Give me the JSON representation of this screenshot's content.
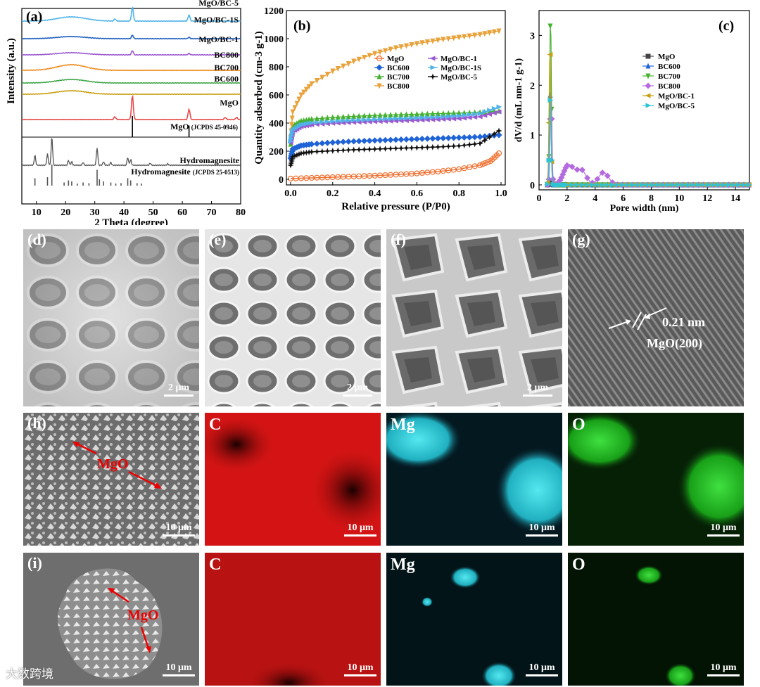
{
  "chart_data": [
    {
      "id": "a",
      "type": "line",
      "panel_label": "(a)",
      "xlabel": "2 Theta (degree)",
      "ylabel": "Intensity (a.u.)",
      "xlim": [
        5,
        80
      ],
      "xticks": [
        10,
        20,
        30,
        40,
        50,
        60,
        70,
        80
      ],
      "series": [
        {
          "name": "MgO/BC-5",
          "color": "#4fb3e8",
          "peaks": [
            {
              "x": 42.9,
              "h": 20
            },
            {
              "x": 62.3,
              "h": 9
            },
            {
              "x": 36.9,
              "h": 3
            }
          ],
          "hump": [
            22,
            6
          ]
        },
        {
          "name": "MgO/BC-1S",
          "color": "#1f5fbf",
          "peaks": [
            {
              "x": 42.9,
              "h": 5
            },
            {
              "x": 62.3,
              "h": 2
            }
          ],
          "hump": [
            22,
            3
          ]
        },
        {
          "name": "MgO/BC-1",
          "color": "#9b59d0",
          "peaks": [
            {
              "x": 42.9,
              "h": 6
            },
            {
              "x": 62.3,
              "h": 2
            }
          ],
          "hump": [
            22,
            3
          ]
        },
        {
          "name": "BC800",
          "color": "#f08a1d",
          "peaks": [],
          "hump": [
            22,
            8
          ]
        },
        {
          "name": "BC700",
          "color": "#3fa64a",
          "peaks": [],
          "hump": [
            22,
            5
          ]
        },
        {
          "name": "BC600",
          "color": "#c8a014",
          "peaks": [],
          "hump": [
            22,
            5
          ]
        },
        {
          "name": "MgO",
          "color": "#e84a4a",
          "peaks": [
            {
              "x": 42.9,
              "h": 34
            },
            {
              "x": 62.3,
              "h": 15
            },
            {
              "x": 36.9,
              "h": 4
            },
            {
              "x": 74.7,
              "h": 3
            },
            {
              "x": 78.6,
              "h": 3
            }
          ],
          "hump": [
            0,
            0
          ]
        }
      ],
      "reference_MgO": {
        "label": "MgO",
        "label_suffix": "(JCPDS 45-0946)",
        "lines": [
          {
            "x": 42.9,
            "h": 1
          },
          {
            "x": 62.3,
            "h": 0.55
          }
        ]
      },
      "hydromagnesite": {
        "label": "Hydromagnesite",
        "ref_label": "Hydromagnesite",
        "ref_suffix": "(JCPDS 25-0513)",
        "peaks": [
          {
            "x": 9.5,
            "h": 14
          },
          {
            "x": 13.8,
            "h": 16
          },
          {
            "x": 15.3,
            "h": 40
          },
          {
            "x": 21.0,
            "h": 7
          },
          {
            "x": 22.1,
            "h": 5
          },
          {
            "x": 26.0,
            "h": 4
          },
          {
            "x": 30.8,
            "h": 25
          },
          {
            "x": 33.0,
            "h": 5
          },
          {
            "x": 35.5,
            "h": 4
          },
          {
            "x": 41.3,
            "h": 11
          },
          {
            "x": 42.3,
            "h": 8
          },
          {
            "x": 49.0,
            "h": 3
          },
          {
            "x": 55.0,
            "h": 2
          }
        ],
        "ref_lines": [
          {
            "x": 9.5,
            "h": 0.35
          },
          {
            "x": 13.8,
            "h": 0.4
          },
          {
            "x": 15.3,
            "h": 1.0
          },
          {
            "x": 19.5,
            "h": 0.15
          },
          {
            "x": 21.0,
            "h": 0.25
          },
          {
            "x": 22.1,
            "h": 0.2
          },
          {
            "x": 24.0,
            "h": 0.1
          },
          {
            "x": 26.0,
            "h": 0.15
          },
          {
            "x": 28.0,
            "h": 0.12
          },
          {
            "x": 30.8,
            "h": 0.75
          },
          {
            "x": 31.6,
            "h": 0.3
          },
          {
            "x": 33.0,
            "h": 0.2
          },
          {
            "x": 35.5,
            "h": 0.15
          },
          {
            "x": 37.2,
            "h": 0.1
          },
          {
            "x": 39.0,
            "h": 0.12
          },
          {
            "x": 41.3,
            "h": 0.35
          },
          {
            "x": 42.3,
            "h": 0.25
          },
          {
            "x": 44.5,
            "h": 0.12
          },
          {
            "x": 46.0,
            "h": 0.1
          }
        ]
      }
    },
    {
      "id": "b",
      "type": "line",
      "panel_label": "(b)",
      "xlabel": "Relative pressure (P/P0)",
      "ylabel": "Quantity adsorbed (cm-3 g-1)",
      "xlim": [
        -0.02,
        1.02
      ],
      "ylim": [
        -40,
        1200
      ],
      "xticks": [
        0.0,
        0.2,
        0.4,
        0.6,
        0.8,
        1.0
      ],
      "yticks": [
        0,
        200,
        400,
        600,
        800,
        1000,
        1200
      ],
      "legend_position": "center-right",
      "series": [
        {
          "name": "MgO",
          "color": "#f07030",
          "marker": "circle",
          "points": [
            [
              0.0,
              5
            ],
            [
              0.1,
              10
            ],
            [
              0.2,
              15
            ],
            [
              0.3,
              20
            ],
            [
              0.4,
              26
            ],
            [
              0.5,
              33
            ],
            [
              0.6,
              42
            ],
            [
              0.7,
              55
            ],
            [
              0.8,
              72
            ],
            [
              0.9,
              100
            ],
            [
              0.95,
              130
            ],
            [
              0.99,
              185
            ]
          ]
        },
        {
          "name": "BC600",
          "color": "#1f63d6",
          "marker": "diamond",
          "points": [
            [
              0.0,
              150
            ],
            [
              0.01,
              215
            ],
            [
              0.05,
              240
            ],
            [
              0.1,
              250
            ],
            [
              0.2,
              262
            ],
            [
              0.3,
              270
            ],
            [
              0.4,
              276
            ],
            [
              0.5,
              281
            ],
            [
              0.6,
              286
            ],
            [
              0.7,
              291
            ],
            [
              0.8,
              296
            ],
            [
              0.9,
              302
            ],
            [
              0.99,
              315
            ]
          ]
        },
        {
          "name": "BC700",
          "color": "#45b12e",
          "marker": "triangle",
          "points": [
            [
              0.0,
              250
            ],
            [
              0.01,
              380
            ],
            [
              0.05,
              415
            ],
            [
              0.1,
              428
            ],
            [
              0.2,
              440
            ],
            [
              0.3,
              448
            ],
            [
              0.4,
              454
            ],
            [
              0.5,
              459
            ],
            [
              0.6,
              463
            ],
            [
              0.7,
              467
            ],
            [
              0.8,
              471
            ],
            [
              0.9,
              476
            ],
            [
              0.99,
              485
            ]
          ]
        },
        {
          "name": "BC800",
          "color": "#e8a23a",
          "marker": "triangle-down",
          "points": [
            [
              0.0,
              300
            ],
            [
              0.01,
              480
            ],
            [
              0.05,
              600
            ],
            [
              0.1,
              680
            ],
            [
              0.2,
              770
            ],
            [
              0.3,
              840
            ],
            [
              0.4,
              895
            ],
            [
              0.5,
              935
            ],
            [
              0.6,
              965
            ],
            [
              0.7,
              990
            ],
            [
              0.8,
              1010
            ],
            [
              0.9,
              1030
            ],
            [
              0.99,
              1055
            ]
          ]
        },
        {
          "name": "MgO/BC-1",
          "color": "#9b59d0",
          "marker": "triangle-left",
          "points": [
            [
              0.0,
              260
            ],
            [
              0.01,
              340
            ],
            [
              0.05,
              375
            ],
            [
              0.1,
              388
            ],
            [
              0.2,
              398
            ],
            [
              0.3,
              405
            ],
            [
              0.4,
              410
            ],
            [
              0.5,
              415
            ],
            [
              0.6,
              420
            ],
            [
              0.7,
              425
            ],
            [
              0.8,
              432
            ],
            [
              0.9,
              445
            ],
            [
              0.99,
              480
            ]
          ]
        },
        {
          "name": "MgO/BC-1S",
          "color": "#4fb3e8",
          "marker": "triangle-right",
          "points": [
            [
              0.0,
              270
            ],
            [
              0.01,
              350
            ],
            [
              0.05,
              388
            ],
            [
              0.1,
              402
            ],
            [
              0.2,
              412
            ],
            [
              0.3,
              420
            ],
            [
              0.4,
              426
            ],
            [
              0.5,
              431
            ],
            [
              0.6,
              437
            ],
            [
              0.7,
              443
            ],
            [
              0.8,
              452
            ],
            [
              0.9,
              468
            ],
            [
              0.99,
              515
            ]
          ]
        },
        {
          "name": "MgO/BC-5",
          "color": "#111111",
          "marker": "star",
          "points": [
            [
              0.0,
              100
            ],
            [
              0.01,
              160
            ],
            [
              0.05,
              185
            ],
            [
              0.1,
              195
            ],
            [
              0.2,
              203
            ],
            [
              0.3,
              210
            ],
            [
              0.4,
              215
            ],
            [
              0.5,
              220
            ],
            [
              0.6,
              225
            ],
            [
              0.7,
              230
            ],
            [
              0.8,
              238
            ],
            [
              0.9,
              255
            ],
            [
              0.99,
              345
            ]
          ]
        }
      ]
    },
    {
      "id": "c",
      "type": "line",
      "panel_label": "(c)",
      "xlabel": "Pore width (nm)",
      "ylabel": "dV/d (mL nm-1 g-1)",
      "xlim": [
        0,
        15
      ],
      "ylim": [
        -0.1,
        3.5
      ],
      "xticks": [
        0,
        2,
        4,
        6,
        8,
        10,
        12,
        14
      ],
      "yticks": [
        0,
        1,
        2,
        3
      ],
      "legend_position": "top-right",
      "series": [
        {
          "name": "MgO",
          "color": "#444444",
          "marker": "square",
          "peak": [
            0.8,
            0.05
          ]
        },
        {
          "name": "BC600",
          "color": "#1f63d6",
          "marker": "triangle",
          "peak": [
            0.8,
            1.8
          ]
        },
        {
          "name": "BC700",
          "color": "#45b12e",
          "marker": "triangle-down",
          "peak": [
            0.82,
            3.35
          ]
        },
        {
          "name": "BC800",
          "color": "#b46be0",
          "marker": "diamond",
          "peak": [
            0.85,
            1.8
          ],
          "bumps": [
            [
              2.1,
              0.4
            ],
            [
              3.0,
              0.3
            ],
            [
              4.6,
              0.25
            ]
          ]
        },
        {
          "name": "MgO/BC-1",
          "color": "#c8a014",
          "marker": "triangle-left",
          "peak": [
            0.78,
            2.75
          ]
        },
        {
          "name": "MgO/BC-5",
          "color": "#2ec4d6",
          "marker": "triangle-right",
          "peak": [
            0.8,
            1.7
          ]
        }
      ]
    }
  ],
  "images": {
    "d": {
      "label": "(d)",
      "scale": "2 μm"
    },
    "e": {
      "label": "(e)",
      "scale": "2 μm"
    },
    "f": {
      "label": "(f)",
      "scale": "2 μm"
    },
    "g": {
      "label": "(g)",
      "spacing": "0.21 nm",
      "plane": "MgO(200)"
    },
    "h": {
      "label": "(h)",
      "scale": "10 μm",
      "annotation": "MgO"
    },
    "i": {
      "label": "(i)",
      "scale": "10 μm",
      "annotation": "MgO"
    },
    "h_maps": [
      {
        "element": "C",
        "scale": "10 μm",
        "color": "#e01010"
      },
      {
        "element": "Mg",
        "scale": "10 μm",
        "color": "#30d0e0"
      },
      {
        "element": "O",
        "scale": "10 μm",
        "color": "#20d020"
      }
    ],
    "i_maps": [
      {
        "element": "C",
        "scale": "10 μm",
        "color": "#d01010"
      },
      {
        "element": "Mg",
        "scale": "10 μm",
        "color": "#30d0e0"
      },
      {
        "element": "O",
        "scale": "10 μm",
        "color": "#20d020"
      }
    ]
  },
  "watermark": "大数跨境"
}
